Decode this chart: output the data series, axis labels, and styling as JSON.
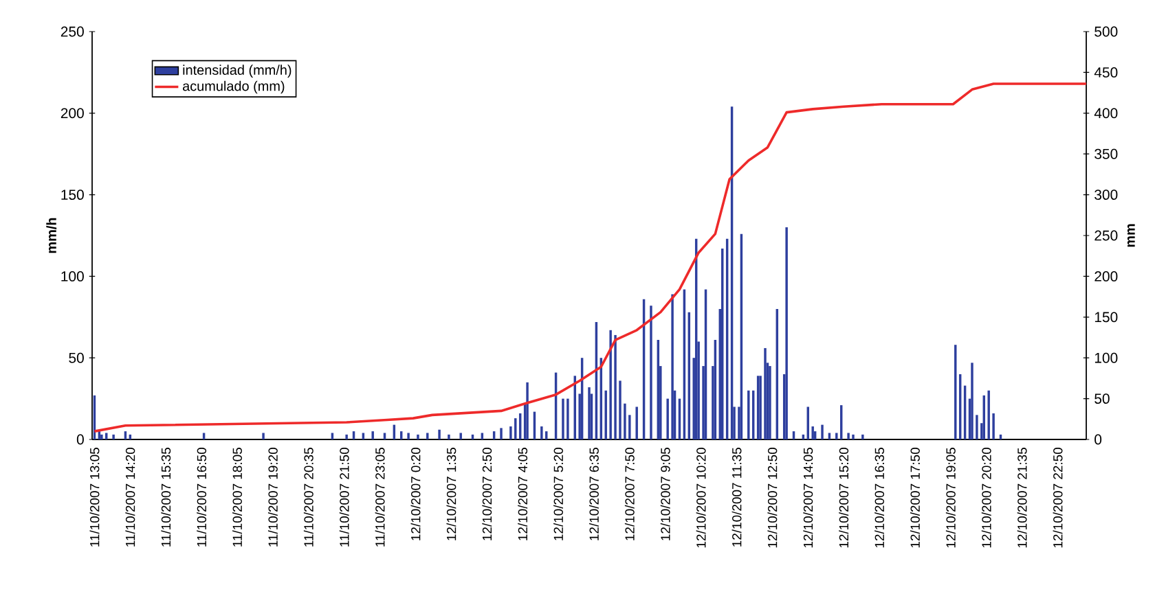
{
  "chart_data": {
    "type": "bar",
    "ylabel": "mm/h",
    "y2label": "mm",
    "legend": "top left",
    "xlim": [
      "2007-10-11T13:00",
      "2007-10-12T23:50"
    ],
    "xticks": [
      {
        "value": "2007-10-11T13:05",
        "label": "11/10/2007 13:05"
      },
      {
        "value": "2007-10-11T14:20",
        "label": "11/10/2007 14:20"
      },
      {
        "value": "2007-10-11T15:35",
        "label": "11/10/2007 15:35"
      },
      {
        "value": "2007-10-11T16:50",
        "label": "11/10/2007 16:50"
      },
      {
        "value": "2007-10-11T18:05",
        "label": "11/10/2007 18:05"
      },
      {
        "value": "2007-10-11T19:20",
        "label": "11/10/2007 19:20"
      },
      {
        "value": "2007-10-11T20:35",
        "label": "11/10/2007 20:35"
      },
      {
        "value": "2007-10-11T21:50",
        "label": "11/10/2007 21:50"
      },
      {
        "value": "2007-10-11T23:05",
        "label": "11/10/2007 23:05"
      },
      {
        "value": "2007-10-12T00:20",
        "label": "12/10/2007 0:20"
      },
      {
        "value": "2007-10-12T01:35",
        "label": "12/10/2007 1:35"
      },
      {
        "value": "2007-10-12T02:50",
        "label": "12/10/2007 2:50"
      },
      {
        "value": "2007-10-12T04:05",
        "label": "12/10/2007 4:05"
      },
      {
        "value": "2007-10-12T05:20",
        "label": "12/10/2007 5:20"
      },
      {
        "value": "2007-10-12T06:35",
        "label": "12/10/2007 6:35"
      },
      {
        "value": "2007-10-12T07:50",
        "label": "12/10/2007 7:50"
      },
      {
        "value": "2007-10-12T09:05",
        "label": "12/10/2007 9:05"
      },
      {
        "value": "2007-10-12T10:20",
        "label": "12/10/2007 10:20"
      },
      {
        "value": "2007-10-12T11:35",
        "label": "12/10/2007 11:35"
      },
      {
        "value": "2007-10-12T12:50",
        "label": "12/10/2007 12:50"
      },
      {
        "value": "2007-10-12T14:05",
        "label": "12/10/2007 14:05"
      },
      {
        "value": "2007-10-12T15:20",
        "label": "12/10/2007 15:20"
      },
      {
        "value": "2007-10-12T16:35",
        "label": "12/10/2007 16:35"
      },
      {
        "value": "2007-10-12T17:50",
        "label": "12/10/2007 17:50"
      },
      {
        "value": "2007-10-12T19:05",
        "label": "12/10/2007 19:05"
      },
      {
        "value": "2007-10-12T20:20",
        "label": "12/10/2007 20:20"
      },
      {
        "value": "2007-10-12T21:35",
        "label": "12/10/2007 21:35"
      },
      {
        "value": "2007-10-12T22:50",
        "label": "12/10/2007 22:50"
      }
    ],
    "ylim": [
      0,
      250
    ],
    "yticks": [
      0,
      50,
      100,
      150,
      200,
      250
    ],
    "y2lim": [
      0,
      500
    ],
    "y2ticks": [
      0,
      50,
      100,
      150,
      200,
      250,
      300,
      350,
      400,
      450,
      500
    ],
    "series": [
      {
        "name": "intensidad (mm/h)",
        "color": "#2e3f9e",
        "x": [
          "2007-10-11T13:05",
          "2007-10-11T13:15",
          "2007-10-11T13:20",
          "2007-10-11T13:30",
          "2007-10-11T13:45",
          "2007-10-11T14:10",
          "2007-10-11T14:20",
          "2007-10-11T16:55",
          "2007-10-11T19:00",
          "2007-10-11T21:25",
          "2007-10-11T21:55",
          "2007-10-11T22:10",
          "2007-10-11T22:30",
          "2007-10-11T22:50",
          "2007-10-11T23:15",
          "2007-10-11T23:35",
          "2007-10-11T23:50",
          "2007-10-12T00:05",
          "2007-10-12T00:25",
          "2007-10-12T00:45",
          "2007-10-12T01:10",
          "2007-10-12T01:30",
          "2007-10-12T01:55",
          "2007-10-12T02:20",
          "2007-10-12T02:40",
          "2007-10-12T03:05",
          "2007-10-12T03:20",
          "2007-10-12T03:40",
          "2007-10-12T03:50",
          "2007-10-12T04:00",
          "2007-10-12T04:10",
          "2007-10-12T04:15",
          "2007-10-12T04:30",
          "2007-10-12T04:45",
          "2007-10-12T04:55",
          "2007-10-12T05:15",
          "2007-10-12T05:30",
          "2007-10-12T05:40",
          "2007-10-12T05:55",
          "2007-10-12T06:05",
          "2007-10-12T06:10",
          "2007-10-12T06:25",
          "2007-10-12T06:30",
          "2007-10-12T06:40",
          "2007-10-12T06:50",
          "2007-10-12T07:00",
          "2007-10-12T07:10",
          "2007-10-12T07:20",
          "2007-10-12T07:30",
          "2007-10-12T07:40",
          "2007-10-12T07:50",
          "2007-10-12T08:05",
          "2007-10-12T08:20",
          "2007-10-12T08:35",
          "2007-10-12T08:50",
          "2007-10-12T08:55",
          "2007-10-12T09:10",
          "2007-10-12T09:20",
          "2007-10-12T09:25",
          "2007-10-12T09:35",
          "2007-10-12T09:45",
          "2007-10-12T09:55",
          "2007-10-12T10:05",
          "2007-10-12T10:10",
          "2007-10-12T10:15",
          "2007-10-12T10:25",
          "2007-10-12T10:30",
          "2007-10-12T10:45",
          "2007-10-12T10:50",
          "2007-10-12T11:00",
          "2007-10-12T11:05",
          "2007-10-12T11:15",
          "2007-10-12T11:25",
          "2007-10-12T11:30",
          "2007-10-12T11:40",
          "2007-10-12T11:45",
          "2007-10-12T12:00",
          "2007-10-12T12:10",
          "2007-10-12T12:20",
          "2007-10-12T12:25",
          "2007-10-12T12:35",
          "2007-10-12T12:40",
          "2007-10-12T12:45",
          "2007-10-12T13:00",
          "2007-10-12T13:15",
          "2007-10-12T13:20",
          "2007-10-12T13:35",
          "2007-10-12T13:55",
          "2007-10-12T14:05",
          "2007-10-12T14:15",
          "2007-10-12T14:20",
          "2007-10-12T14:35",
          "2007-10-12T14:50",
          "2007-10-12T15:05",
          "2007-10-12T15:15",
          "2007-10-12T15:30",
          "2007-10-12T15:40",
          "2007-10-12T16:00",
          "2007-10-12T19:15",
          "2007-10-12T19:25",
          "2007-10-12T19:35",
          "2007-10-12T19:45",
          "2007-10-12T19:50",
          "2007-10-12T20:00",
          "2007-10-12T20:10",
          "2007-10-12T20:15",
          "2007-10-12T20:25",
          "2007-10-12T20:35",
          "2007-10-12T20:50"
        ],
        "values": [
          27,
          5,
          3,
          4,
          3,
          5,
          3,
          4,
          4,
          4,
          3,
          5,
          4,
          5,
          4,
          9,
          5,
          4,
          3,
          4,
          6,
          3,
          4,
          3,
          4,
          5,
          7,
          8,
          13,
          16,
          22,
          35,
          17,
          8,
          5,
          41,
          25,
          25,
          39,
          28,
          50,
          32,
          28,
          72,
          50,
          30,
          67,
          64,
          36,
          22,
          15,
          20,
          86,
          82,
          61,
          45,
          25,
          89,
          30,
          25,
          92,
          78,
          50,
          123,
          60,
          45,
          92,
          45,
          61,
          80,
          117,
          123,
          204,
          20,
          20,
          126,
          30,
          30,
          39,
          39,
          56,
          47,
          45,
          80,
          40,
          130,
          5,
          3,
          20,
          8,
          5,
          9,
          4,
          4,
          21,
          4,
          3,
          3,
          58,
          40,
          33,
          25,
          47,
          15,
          10,
          27,
          30,
          16,
          3
        ]
      },
      {
        "name": "acumulado (mm)",
        "type": "line",
        "axis": "y2",
        "color": "#ee2a2a",
        "x": [
          "2007-10-11T13:05",
          "2007-10-11T14:10",
          "2007-10-11T21:55",
          "2007-10-11T23:20",
          "2007-10-12T00:15",
          "2007-10-12T00:55",
          "2007-10-12T03:20",
          "2007-10-12T04:10",
          "2007-10-12T05:15",
          "2007-10-12T06:05",
          "2007-10-12T06:50",
          "2007-10-12T07:20",
          "2007-10-12T08:05",
          "2007-10-12T08:55",
          "2007-10-12T09:35",
          "2007-10-12T10:15",
          "2007-10-12T10:50",
          "2007-10-12T11:20",
          "2007-10-12T12:00",
          "2007-10-12T12:40",
          "2007-10-12T13:20",
          "2007-10-12T14:15",
          "2007-10-12T15:20",
          "2007-10-12T16:40",
          "2007-10-12T19:10",
          "2007-10-12T19:50",
          "2007-10-12T20:35",
          "2007-10-12T23:50"
        ],
        "values": [
          10,
          17,
          21,
          24,
          26,
          30,
          35,
          44,
          55,
          72,
          89,
          122,
          134,
          156,
          184,
          229,
          252,
          319,
          342,
          358,
          401,
          405,
          408,
          411,
          411,
          429,
          436,
          436
        ]
      }
    ]
  }
}
